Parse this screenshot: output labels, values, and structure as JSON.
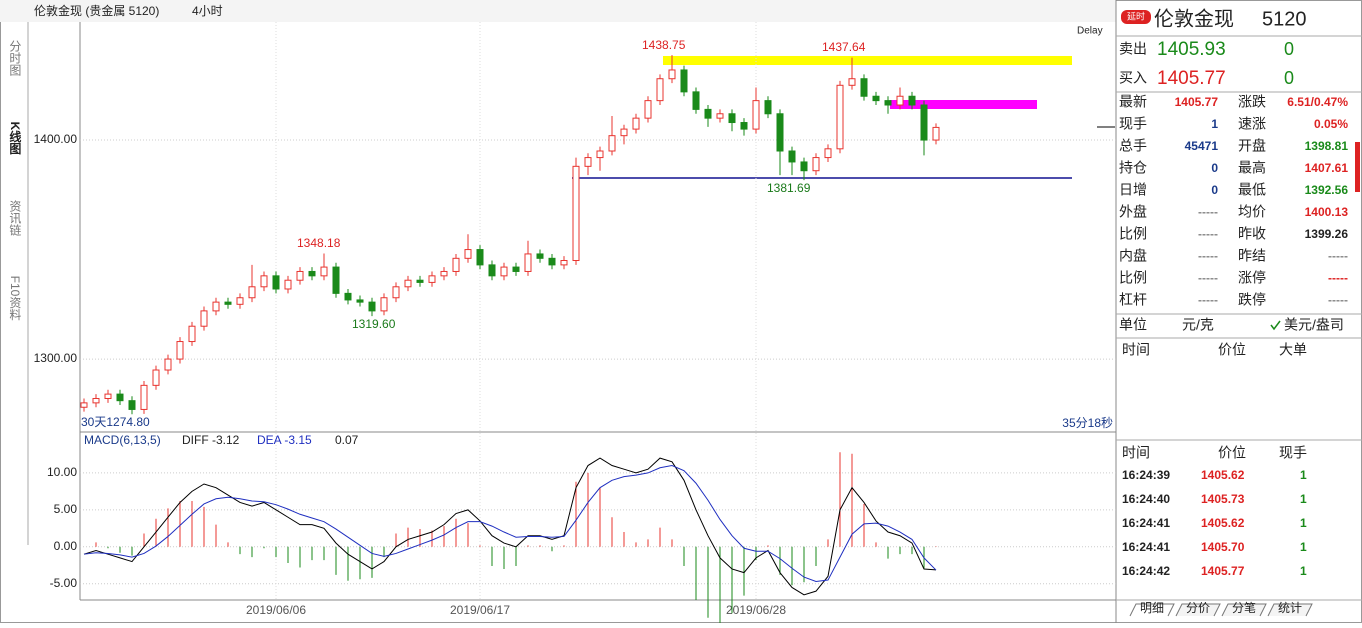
{
  "header": {
    "title": "伦敦金现 (贵金属 5120)",
    "period": "4小时"
  },
  "side_tabs": [
    "分时图",
    "K线图",
    "资讯链",
    "F10资料"
  ],
  "delay": "Delay",
  "annotations": [
    "1438.75",
    "1437.64",
    "1348.18",
    "1319.60",
    "1381.69",
    "30天1274.80",
    "35分18秒"
  ],
  "indicator": {
    "name": "MACD(6,13,5)",
    "diff": "DIFF -3.12",
    "dea": "DEA -3.15",
    "macd": "0.07"
  },
  "chart_data": {
    "type": "candlestick",
    "categories": [
      null,
      null,
      null,
      null,
      null,
      null,
      null,
      null,
      null,
      null,
      null,
      null,
      null,
      null,
      null,
      null,
      "2019/06/06",
      null,
      null,
      null,
      null,
      null,
      null,
      null,
      null,
      null,
      null,
      null,
      null,
      null,
      null,
      null,
      null,
      "2019/06/17",
      null,
      null,
      null,
      null,
      null,
      null,
      null,
      null,
      null,
      null,
      null,
      null,
      null,
      null,
      null,
      null,
      null,
      null,
      null,
      null,
      null,
      null,
      "2019/06/28",
      null,
      null,
      null,
      null,
      null,
      null,
      null,
      null,
      null,
      null,
      null,
      null,
      null,
      null,
      null
    ],
    "open": [
      1278,
      1280,
      1282,
      1284,
      1281,
      1277,
      1288,
      1295,
      1300,
      1308,
      1315,
      1322,
      1326,
      1325,
      1328,
      1333,
      1338,
      1332,
      1336,
      1340,
      1338,
      1342,
      1330,
      1327,
      1326,
      1322,
      1328,
      1333,
      1336,
      1335,
      1338,
      1340,
      1346,
      1350,
      1343,
      1338,
      1342,
      1340,
      1348,
      1346,
      1343,
      1345,
      1388,
      1392,
      1395,
      1402,
      1405,
      1410,
      1418,
      1428,
      1432,
      1422,
      1414,
      1410,
      1412,
      1408,
      1405,
      1418,
      1412,
      1395,
      1390,
      1386,
      1392,
      1396,
      1425,
      1428,
      1420,
      1418,
      1416,
      1420,
      1416,
      1400
    ],
    "high": [
      1282,
      1284,
      1286,
      1286,
      1283,
      1290,
      1297,
      1302,
      1310,
      1317,
      1324,
      1328,
      1328,
      1330,
      1343,
      1340,
      1340,
      1338,
      1342,
      1342,
      1348.18,
      1344,
      1332,
      1329,
      1328,
      1330,
      1335,
      1338,
      1338,
      1340,
      1342,
      1348,
      1357,
      1352,
      1345,
      1344,
      1344,
      1354,
      1350,
      1348,
      1347,
      1392,
      1394,
      1397,
      1411,
      1407,
      1412,
      1420,
      1430,
      1438.75,
      1434,
      1424,
      1416,
      1414,
      1414,
      1410,
      1424,
      1420,
      1414,
      1397,
      1392,
      1394,
      1398,
      1427,
      1437.64,
      1430,
      1422,
      1420,
      1424,
      1422,
      1418,
      1407.61
    ],
    "low": [
      1276,
      1278,
      1280,
      1279,
      1274.8,
      1275,
      1286,
      1293,
      1298,
      1306,
      1313,
      1320,
      1323,
      1323,
      1326,
      1331,
      1330,
      1330,
      1334,
      1336,
      1336,
      1328,
      1325,
      1324,
      1319.6,
      1320,
      1326,
      1331,
      1333,
      1333,
      1336,
      1338,
      1344,
      1341,
      1336,
      1336,
      1338,
      1338,
      1344,
      1341,
      1341,
      1343,
      1384,
      1386,
      1393,
      1398,
      1403,
      1408,
      1416,
      1426,
      1420,
      1412,
      1406,
      1408,
      1404,
      1402,
      1403,
      1410,
      1384,
      1384,
      1381.69,
      1384,
      1390,
      1394,
      1423,
      1418,
      1416,
      1412,
      1414,
      1414,
      1393,
      1398
    ],
    "close": [
      1280,
      1282,
      1284,
      1281,
      1277,
      1288,
      1295,
      1300,
      1308,
      1315,
      1322,
      1326,
      1325,
      1328,
      1333,
      1338,
      1332,
      1336,
      1340,
      1338,
      1342,
      1330,
      1327,
      1326,
      1322,
      1328,
      1333,
      1336,
      1335,
      1338,
      1340,
      1346,
      1350,
      1343,
      1338,
      1342,
      1340,
      1348,
      1346,
      1343,
      1345,
      1388,
      1392,
      1395,
      1402,
      1405,
      1410,
      1418,
      1428,
      1432,
      1422,
      1414,
      1410,
      1412,
      1408,
      1405,
      1418,
      1412,
      1395,
      1390,
      1386,
      1392,
      1396,
      1425,
      1428,
      1420,
      1418,
      1416,
      1420,
      1416,
      1400,
      1405.77
    ],
    "up_color": "#e8342f",
    "down_color": "#1a8a1a",
    "ylim": [
      1266.7,
      1453.9
    ],
    "yticks": [
      {
        "value": 1400,
        "label": "1400.00"
      },
      {
        "value": 1300,
        "label": "1300.00"
      }
    ],
    "macd": {
      "ylim": [
        -7.2,
        15.4
      ],
      "yticks": [
        {
          "value": 10,
          "label": "10.00"
        },
        {
          "value": 5,
          "label": "5.00"
        },
        {
          "value": 0,
          "label": "0.00"
        },
        {
          "value": -5,
          "label": "-5.00"
        }
      ],
      "diff": [
        -1,
        -0.5,
        -1,
        -1.5,
        -2,
        0,
        2,
        4,
        6,
        7.5,
        8.5,
        8,
        7,
        6,
        5.5,
        6,
        5,
        4,
        3,
        3,
        2.5,
        0.5,
        -1,
        -2,
        -3,
        -2,
        0,
        1,
        1.5,
        2,
        3,
        4.5,
        5,
        3.5,
        1.5,
        0.5,
        0,
        1.5,
        1.5,
        1,
        1.5,
        8,
        11,
        12,
        11,
        10.5,
        10,
        10.5,
        12,
        11.5,
        9,
        5,
        1.5,
        -1.5,
        -3,
        -3.5,
        -1.5,
        -0.5,
        -3.5,
        -5.5,
        -6.5,
        -6,
        -4,
        5,
        8,
        6,
        3.5,
        2,
        1.5,
        0.5,
        -3,
        -3.12
      ],
      "dea": [
        -1,
        -0.8,
        -0.9,
        -1.1,
        -1.4,
        -0.9,
        0.1,
        1.4,
        2.9,
        4.4,
        5.8,
        6.5,
        6.7,
        6.5,
        6.2,
        6.1,
        5.7,
        5.1,
        4.4,
        3.9,
        3.4,
        2.4,
        1.3,
        0.2,
        -0.9,
        -1.3,
        -0.9,
        -0.3,
        0.3,
        0.9,
        1.6,
        2.6,
        3.4,
        3.4,
        2.8,
        2,
        1.3,
        1.4,
        1.4,
        1.3,
        1.4,
        3.6,
        6,
        8,
        9,
        9.5,
        9.7,
        10,
        10.7,
        11,
        10.3,
        8.6,
        6.3,
        3.7,
        1.5,
        -0.2,
        -0.6,
        -0.6,
        -1.6,
        -2.9,
        -4.1,
        -4.7,
        -4.5,
        -1.4,
        1.7,
        3.1,
        3.2,
        2.8,
        2,
        1,
        -1.5,
        -3.15
      ],
      "hist": [
        0,
        0.6,
        -0.2,
        -0.8,
        -1.2,
        1.8,
        3.8,
        5.2,
        6.2,
        6.2,
        5.4,
        3,
        0.6,
        -1,
        -1.4,
        -0.2,
        -1.4,
        -2.2,
        -2.8,
        -1.8,
        -1.8,
        -3.8,
        -4.6,
        -4.4,
        -4.2,
        -1.4,
        1.8,
        2.6,
        2.4,
        2.2,
        2.8,
        3.8,
        3.2,
        0.2,
        -2.6,
        -3,
        -2.6,
        0.2,
        0.2,
        -0.6,
        0.2,
        8.8,
        10,
        8,
        4,
        2,
        0.6,
        1,
        2.6,
        1,
        -2.6,
        -7.2,
        -9.6,
        -10.4,
        -9,
        -6.6,
        -1.8,
        0.2,
        -3.8,
        -5.2,
        -4.8,
        -2.6,
        1,
        12.8,
        12.6,
        5.8,
        0.6,
        -1.6,
        -1,
        -1,
        -3,
        0.07
      ],
      "diff_color": "#000000",
      "dea_color": "#1f2fc0"
    }
  },
  "quote": {
    "badge": "延时",
    "name": "伦敦金现",
    "code": "5120",
    "sell_label": "卖出",
    "sell": "1405.93",
    "sell_vol": "0",
    "buy_label": "买入",
    "buy": "1405.77",
    "buy_vol": "0"
  },
  "stats": [
    [
      "最新",
      "1405.77",
      "涨跌",
      "6.51/0.47%"
    ],
    [
      "现手",
      "1",
      "速涨",
      "0.05%"
    ],
    [
      "总手",
      "45471",
      "开盘",
      "1398.81"
    ],
    [
      "持仓",
      "0",
      "最高",
      "1407.61"
    ],
    [
      "日增",
      "0",
      "最低",
      "1392.56"
    ],
    [
      "外盘",
      "-----",
      "均价",
      "1400.13"
    ],
    [
      "比例",
      "-----",
      "昨收",
      "1399.26"
    ],
    [
      "内盘",
      "-----",
      "昨结",
      "-----"
    ],
    [
      "比例",
      "-----",
      "涨停",
      "-----"
    ],
    [
      "杠杆",
      "-----",
      "跌停",
      "-----"
    ]
  ],
  "units": {
    "label": "单位",
    "option1": "元/克",
    "option2": "美元/盎司"
  },
  "big_orders": {
    "headers": [
      "时间",
      "价位",
      "大单"
    ]
  },
  "trades": {
    "headers": [
      "时间",
      "价位",
      "现手"
    ],
    "rows": [
      [
        "16:24:39",
        "1405.62",
        "1"
      ],
      [
        "16:24:40",
        "1405.73",
        "1"
      ],
      [
        "16:24:41",
        "1405.62",
        "1"
      ],
      [
        "16:24:41",
        "1405.70",
        "1"
      ],
      [
        "16:24:42",
        "1405.77",
        "1"
      ]
    ]
  },
  "bottom_tabs": [
    "明细",
    "分价",
    "分笔",
    "统计"
  ]
}
